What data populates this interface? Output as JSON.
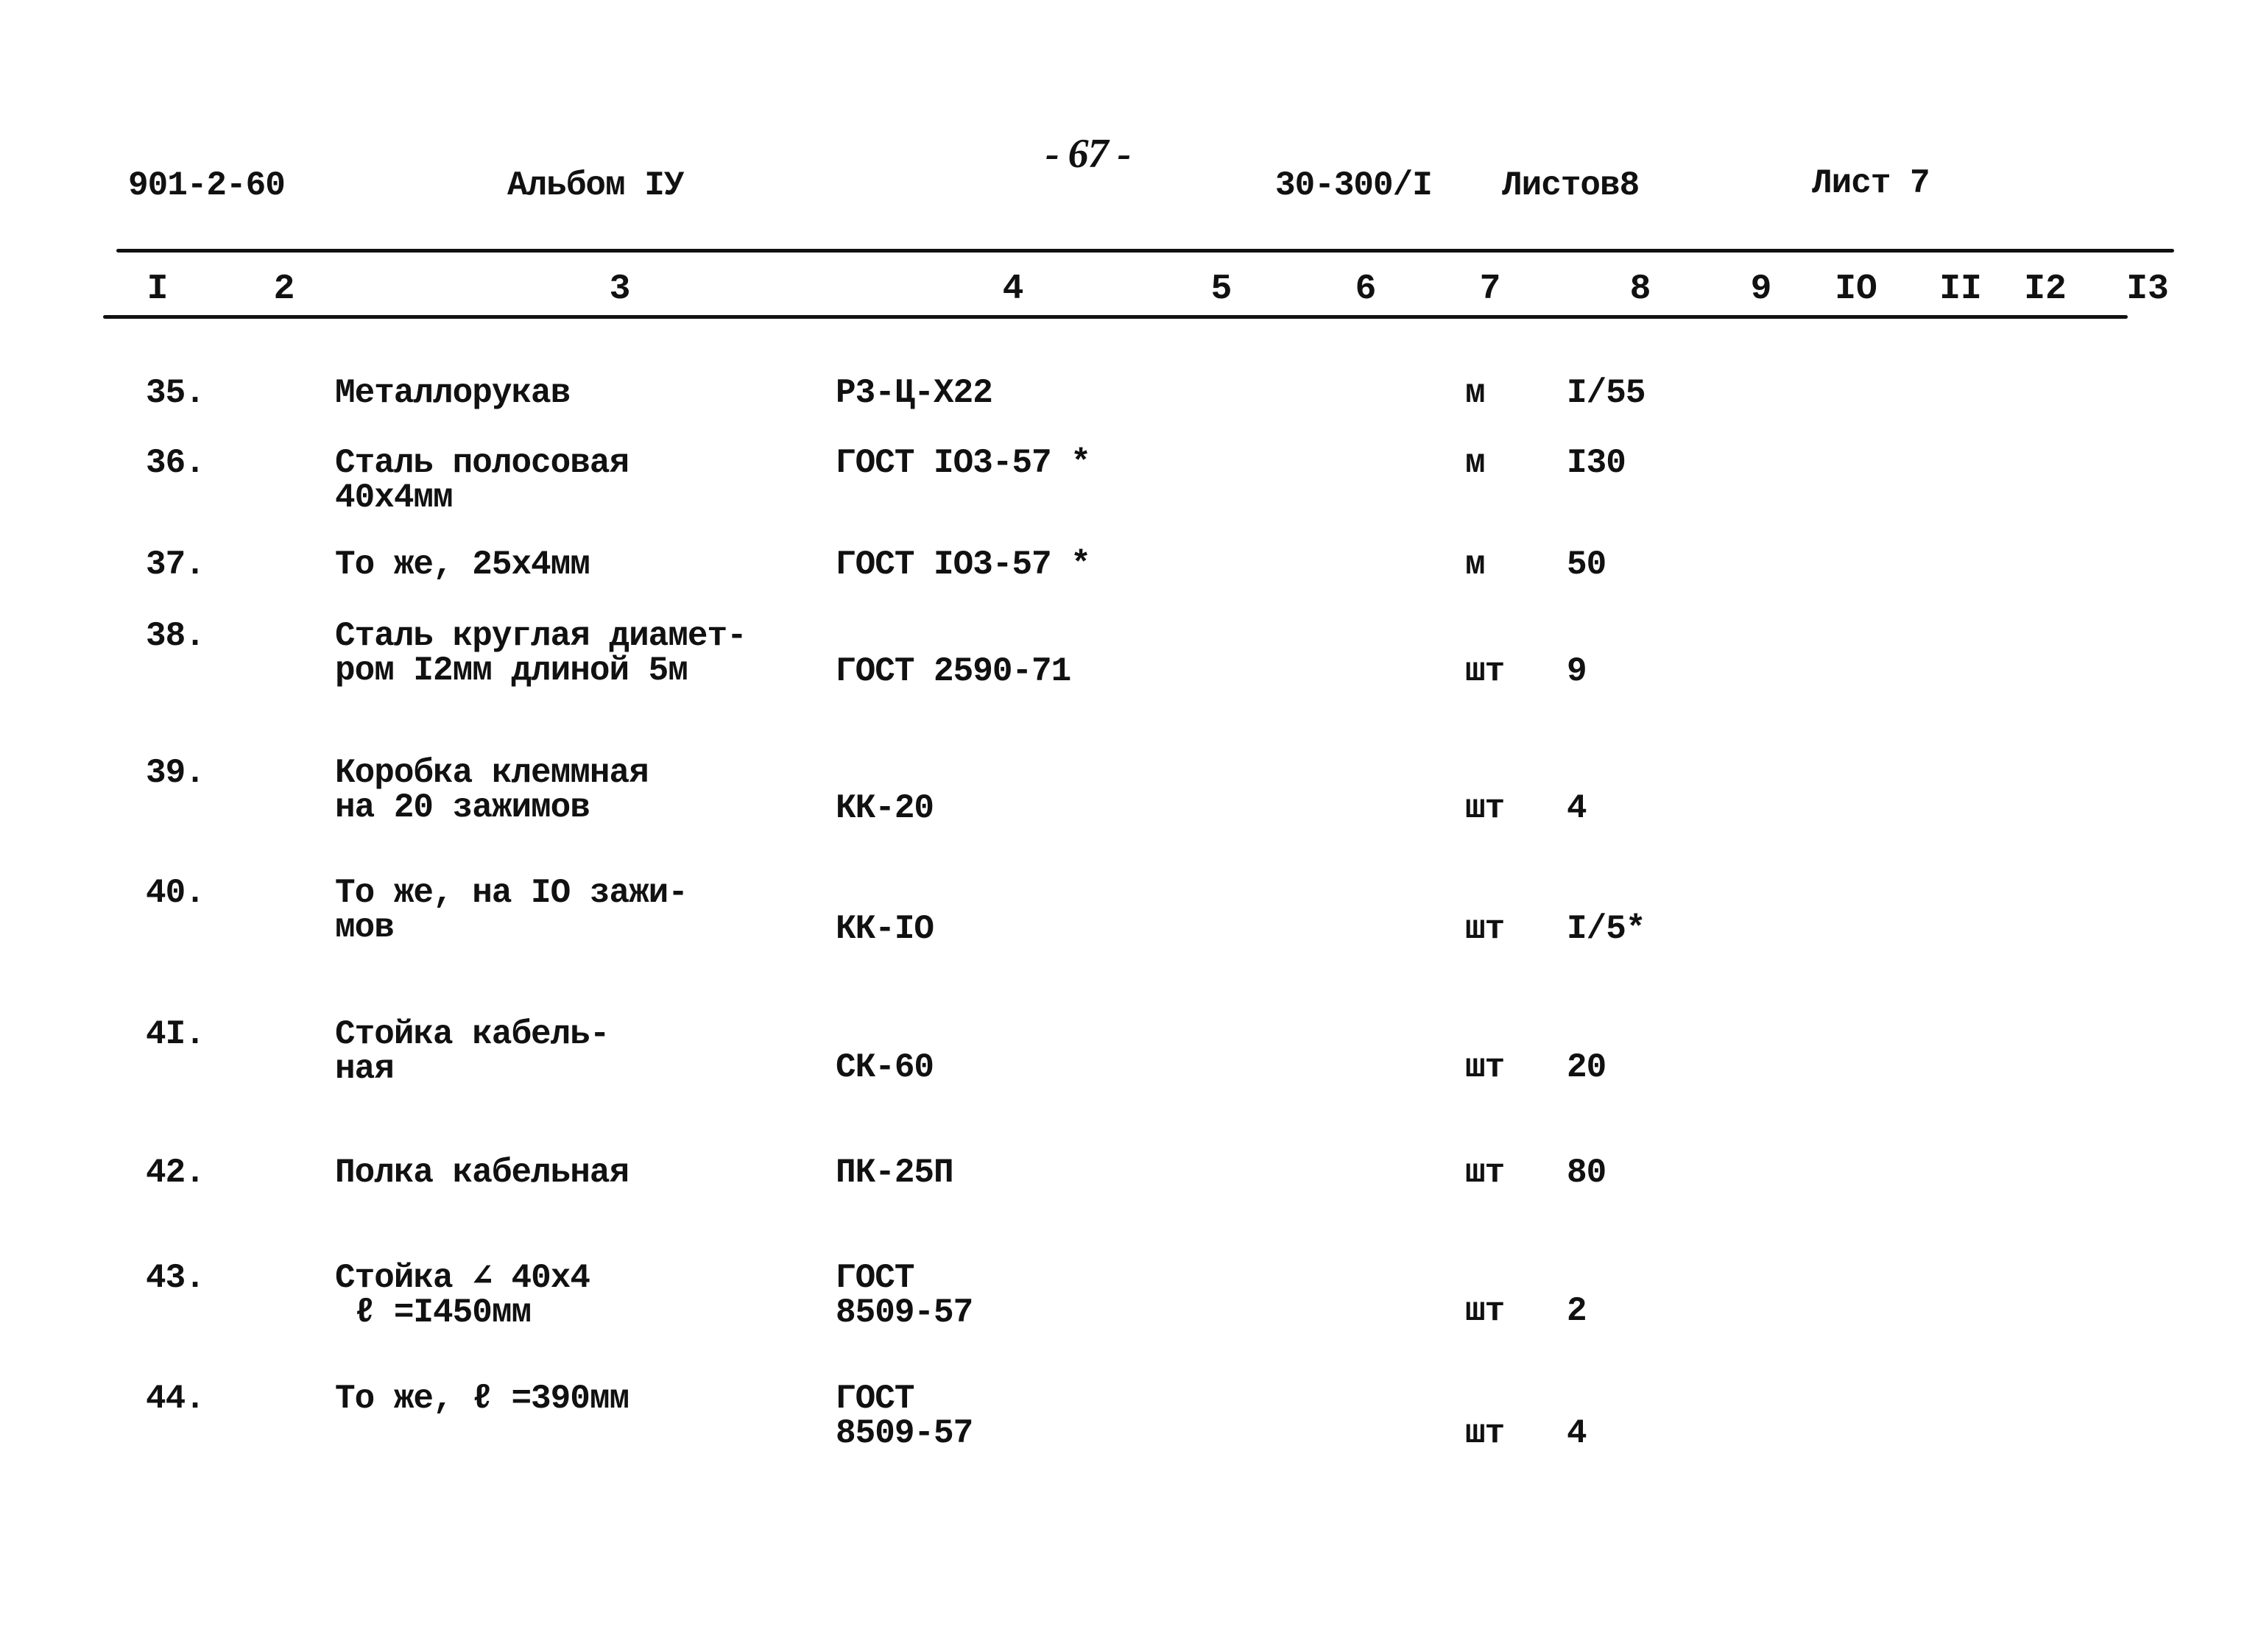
{
  "header": {
    "doc_code": "901-2-60",
    "album": "Альбом IУ",
    "page_number": "- 67 -",
    "sheet_code": "30-300/I",
    "sheets_total": "Листов8",
    "sheet": "Лист 7"
  },
  "column_headers": [
    "I",
    "2",
    "3",
    "4",
    "5",
    "6",
    "7",
    "8",
    "9",
    "IO",
    "II",
    "I2",
    "I3"
  ],
  "rows": [
    {
      "num": "35.",
      "name": "Металлорукав",
      "code": "Р3-Ц-Х22",
      "unit": "м",
      "qty": "I/55"
    },
    {
      "num": "36.",
      "name": "Сталь полосовая\n40х4мм",
      "code": "ГОСТ IO3-57 *",
      "unit": "м",
      "qty": "I30"
    },
    {
      "num": "37.",
      "name": "То же, 25х4мм",
      "code": "ГОСТ IO3-57 *",
      "unit": "м",
      "qty": "50"
    },
    {
      "num": "38.",
      "name": "Сталь круглая диамет-\nром I2мм длиной 5м",
      "code": "ГОСТ 2590-71",
      "unit": "шт",
      "qty": "9"
    },
    {
      "num": "39.",
      "name": "Коробка клеммная\nна 20 зажимов",
      "code": "КК-20",
      "unit": "шт",
      "qty": "4"
    },
    {
      "num": "40.",
      "name": "То же, на IO зажи-\nмов",
      "code": "КК-IO",
      "unit": "шт",
      "qty": "I/5*"
    },
    {
      "num": "4I.",
      "name": "Стойка кабель-\nная",
      "code": "СК-60",
      "unit": "шт",
      "qty": "20"
    },
    {
      "num": "42.",
      "name": "Полка кабельная",
      "code": "ПК-25П",
      "unit": "шт",
      "qty": "80"
    },
    {
      "num": "43.",
      "name": "Стойка ∠ 40х4\n ℓ =I450мм",
      "code": "ГОСТ\n8509-57",
      "unit": "шт",
      "qty": "2"
    },
    {
      "num": "44.",
      "name": "То же, ℓ =390мм",
      "code": "ГОСТ\n8509-57",
      "unit": "шт",
      "qty": "4"
    }
  ]
}
